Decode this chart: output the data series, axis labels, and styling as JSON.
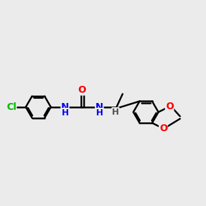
{
  "background_color": "#ebebeb",
  "bond_color": "#000000",
  "bond_width": 1.8,
  "atom_colors": {
    "Cl": "#00bb00",
    "N": "#0000ff",
    "O": "#ff0000",
    "C": "#000000",
    "H": "#555555"
  },
  "font_size": 10,
  "figsize": [
    3.0,
    3.0
  ],
  "dpi": 100
}
